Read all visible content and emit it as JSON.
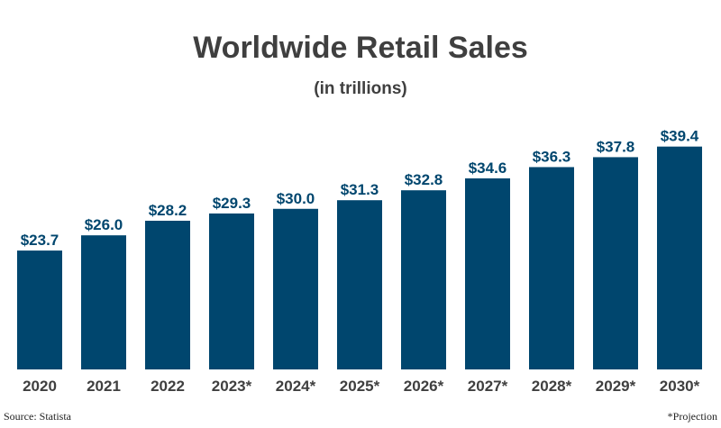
{
  "chart_data": {
    "type": "bar",
    "title": "Worldwide Retail Sales",
    "subtitle": "(in trillions)",
    "categories": [
      "2020",
      "2021",
      "2022",
      "2023*",
      "2024*",
      "2025*",
      "2026*",
      "2027*",
      "2028*",
      "2029*",
      "2030*"
    ],
    "values": [
      23.7,
      26.0,
      28.2,
      29.3,
      30.0,
      31.3,
      32.8,
      34.6,
      36.3,
      37.8,
      39.4
    ],
    "data_labels": [
      "$23.7",
      "$26.0",
      "$28.2",
      "$29.3",
      "$30.0",
      "$31.3",
      "$32.8",
      "$34.6",
      "$36.3",
      "$37.8",
      "$39.4"
    ],
    "bar_color": "#00466e",
    "label_color": "#00466e",
    "grid": false,
    "legend": "none"
  },
  "source": "Source: Statista",
  "footnote": "*Projection"
}
